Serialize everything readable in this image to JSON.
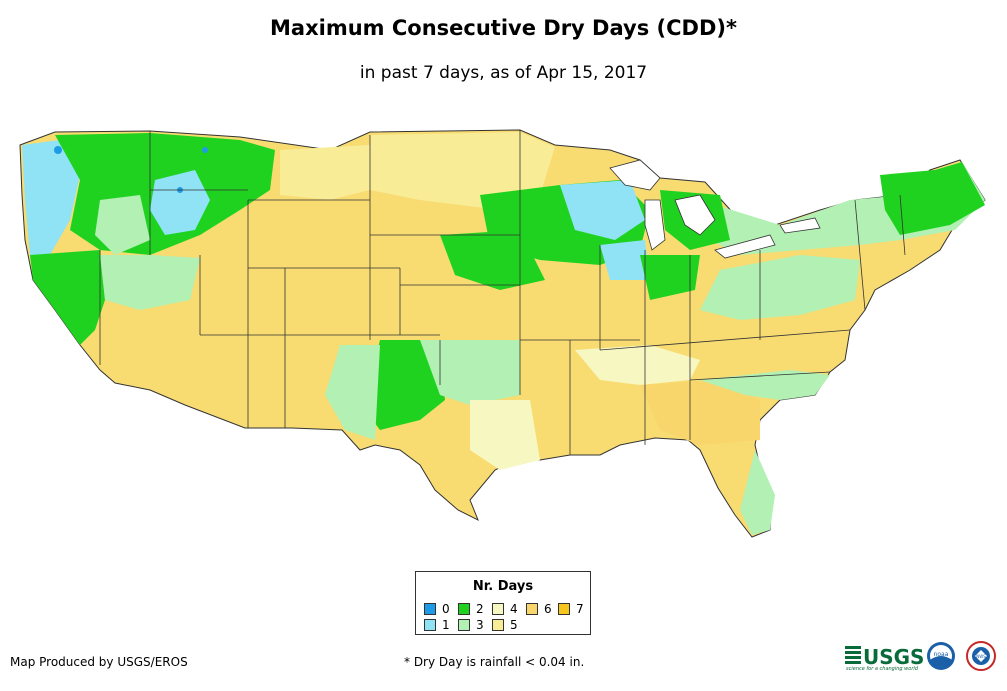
{
  "title": "Maximum Consecutive Dry Days (CDD)*",
  "subtitle": "in past 7 days, as of Apr 15, 2017",
  "legend": {
    "title": "Nr. Days",
    "items": [
      {
        "label": "0",
        "color": "#1e9be6"
      },
      {
        "label": "1",
        "color": "#8fe3f5"
      },
      {
        "label": "2",
        "color": "#1fd21f"
      },
      {
        "label": "3",
        "color": "#b2f0b4"
      },
      {
        "label": "4",
        "color": "#f7f7c2"
      },
      {
        "label": "5",
        "color": "#f8ec96"
      },
      {
        "label": "6",
        "color": "#f9d66b"
      },
      {
        "label": "7",
        "color": "#f6c51e"
      }
    ]
  },
  "footer": {
    "credit": "Map Produced by USGS/EROS",
    "note": "* Dry Day is rainfall < 0.04 in."
  },
  "logos": {
    "usgs": "USGS",
    "usgs_tagline": "science for a changing world",
    "noaa": "noaa",
    "nws": "NWS"
  }
}
